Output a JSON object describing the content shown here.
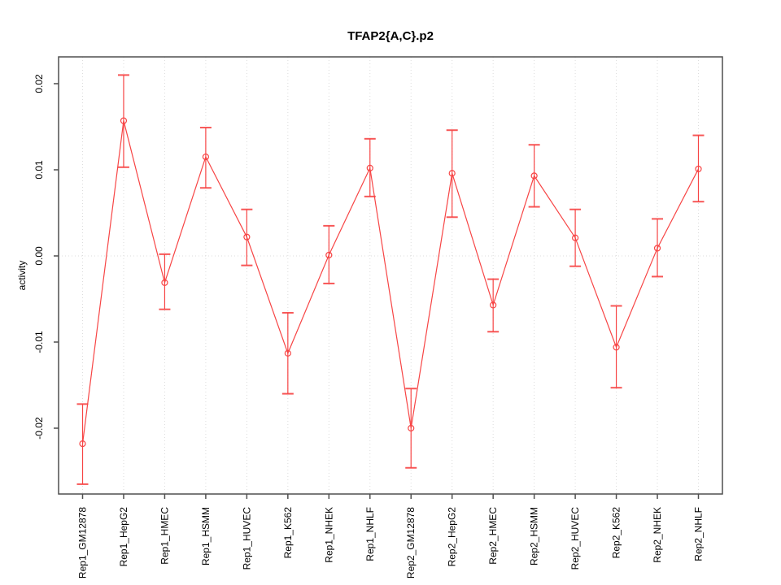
{
  "figure": {
    "title": "TFAP2{A,C}.p2",
    "ylabel": "activity"
  },
  "chart_data": {
    "type": "line",
    "title": "TFAP2{A,C}.p2",
    "xlabel": "",
    "ylabel": "activity",
    "legend": "none",
    "marker": "open-circle",
    "error_bars": true,
    "categories": [
      "Rep1_GM12878",
      "Rep1_HepG2",
      "Rep1_HMEC",
      "Rep1_HSMM",
      "Rep1_HUVEC",
      "Rep1_K562",
      "Rep1_NHEK",
      "Rep1_NHLF",
      "Rep2_GM12878",
      "Rep2_HepG2",
      "Rep2_HMEC",
      "Rep2_HSMM",
      "Rep2_HUVEC",
      "Rep2_K562",
      "Rep2_NHEK",
      "Rep2_NHLF"
    ],
    "series": [
      {
        "name": "activity",
        "values": [
          -0.0218,
          0.0157,
          -0.0031,
          0.0115,
          0.0022,
          -0.0113,
          0.0001,
          0.0102,
          -0.02,
          0.0096,
          -0.0057,
          0.0093,
          0.0021,
          -0.0106,
          0.0009,
          0.0101
        ],
        "error_low": [
          -0.0265,
          0.0103,
          -0.0062,
          0.0079,
          -0.0011,
          -0.016,
          -0.0032,
          0.0069,
          -0.0246,
          0.0045,
          -0.0088,
          0.0057,
          -0.0012,
          -0.0153,
          -0.0024,
          0.0063
        ],
        "error_high": [
          -0.0172,
          0.021,
          0.0002,
          0.0149,
          0.0054,
          -0.0066,
          0.0035,
          0.0136,
          -0.0154,
          0.0146,
          -0.0027,
          0.0129,
          0.0054,
          -0.0058,
          0.0043,
          0.014
        ]
      }
    ],
    "yticks": [
      -0.02,
      -0.01,
      0.0,
      0.01,
      0.02
    ],
    "ytick_labels": [
      "-0.02",
      "-0.01",
      "0.00",
      "0.01",
      "0.02"
    ],
    "ylim": [
      -0.02764,
      0.02311
    ],
    "grid": {
      "vertical_dotted_at_each_category": true,
      "horizontal_dotted_at": 0
    },
    "colors": {
      "series": "#f74545",
      "grid": "#dcdcdc",
      "box": "#4f4f4f",
      "text": "#000000",
      "background": "#ffffff"
    }
  }
}
